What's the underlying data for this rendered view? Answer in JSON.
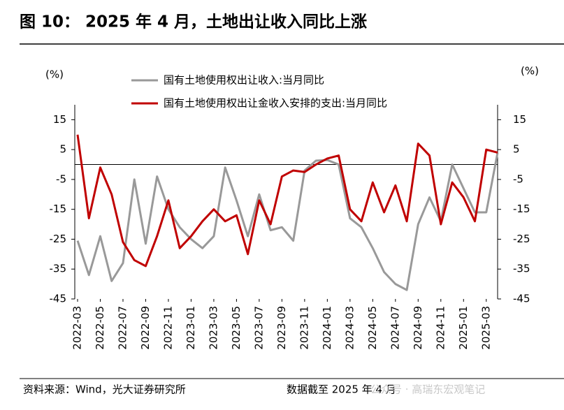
{
  "title": "图 10： 2025 年 4 月，土地出让收入同比上涨",
  "footer": {
    "source": "资料来源：Wind，光大证券研究所",
    "date": "数据截至 2025 年 4 月",
    "watermark": "公众号 · 高瑞东宏观笔记"
  },
  "chart_data": {
    "type": "line",
    "y_label": "(%)",
    "y2_label": "(%)",
    "categories": [
      "2022-03",
      null,
      "2022-05",
      null,
      "2022-07",
      null,
      "2022-09",
      null,
      "2022-11",
      null,
      "2023-01",
      null,
      "2023-03",
      null,
      "2023-05",
      null,
      "2023-07",
      null,
      "2023-09",
      null,
      "2023-11",
      null,
      "2024-01",
      null,
      "2024-03",
      null,
      "2024-05",
      null,
      "2024-07",
      null,
      "2024-09",
      null,
      "2024-11",
      null,
      "2025-01",
      null,
      "2025-03",
      null
    ],
    "series": [
      {
        "name": "国有土地使用权出让收入:当月同比",
        "color": "#999999",
        "values": [
          -25.5,
          -37,
          -24,
          -39,
          -33,
          -5,
          -26.5,
          -4,
          -15,
          -21,
          -25,
          -28,
          -24,
          -1,
          -12,
          -24,
          -10,
          -22,
          -21,
          -25.5,
          -2,
          1.3,
          1.5,
          0,
          -18,
          -21,
          -28,
          -36,
          -40,
          -42,
          -20,
          -11,
          -19,
          0,
          -8,
          -16,
          -16,
          4
        ]
      },
      {
        "name": "国有土地使用权出让金收入安排的支出:当月同比",
        "color": "#c00000",
        "axis": "y2",
        "values": [
          10,
          -18,
          -1,
          -10,
          -26,
          -32,
          -34,
          -24,
          -12,
          -28,
          -24,
          -19,
          -15,
          -19,
          -17,
          -30,
          -12,
          -20,
          -4,
          -2,
          -2.5,
          0,
          2,
          3,
          -15,
          -19,
          -6,
          -16,
          -7,
          -19,
          7,
          3,
          -20,
          -6,
          -11,
          -19,
          5,
          4
        ]
      }
    ],
    "ylim": [
      -45,
      20
    ],
    "yticks": [
      15,
      5,
      -5,
      -15,
      -25,
      -35,
      -45
    ],
    "y2lim": [
      -45,
      20
    ],
    "y2ticks": [
      15,
      5,
      -5,
      -15,
      -25,
      -35,
      -45
    ]
  }
}
